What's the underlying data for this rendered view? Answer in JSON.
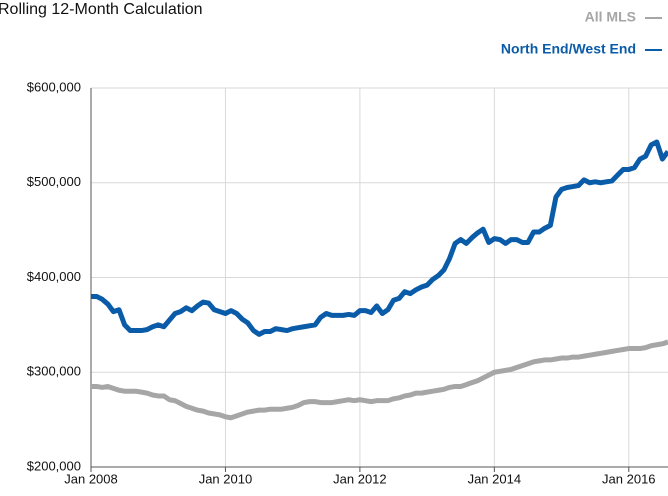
{
  "chart_data": {
    "type": "line",
    "title": "Rolling 12-Month Calculation",
    "categories": [
      "Jan 2008",
      null,
      null,
      null,
      null,
      null,
      null,
      null,
      null,
      null,
      null,
      null,
      null,
      null,
      null,
      null,
      null,
      null,
      null,
      null,
      null,
      null,
      null,
      null,
      "Jan 2010",
      null,
      null,
      null,
      null,
      null,
      null,
      null,
      null,
      null,
      null,
      null,
      null,
      null,
      null,
      null,
      null,
      null,
      null,
      null,
      null,
      null,
      null,
      null,
      "Jan 2012",
      null,
      null,
      null,
      null,
      null,
      null,
      null,
      null,
      null,
      null,
      null,
      null,
      null,
      null,
      null,
      null,
      null,
      null,
      null,
      null,
      null,
      null,
      null,
      "Jan 2014",
      null,
      null,
      null,
      null,
      null,
      null,
      null,
      null,
      null,
      null,
      null,
      null,
      null,
      null,
      null,
      null,
      null,
      null,
      null,
      null,
      null,
      null,
      null,
      "Jan 2016",
      null,
      null,
      null,
      null,
      null,
      null,
      null
    ],
    "series": [
      {
        "name": "All MLS",
        "color": "#a6a6a6",
        "values": [
          285000,
          285000,
          284000,
          285000,
          283000,
          281000,
          280000,
          280000,
          280000,
          279000,
          278000,
          276000,
          275000,
          275000,
          271000,
          270000,
          267000,
          264000,
          262000,
          260000,
          259000,
          257000,
          256000,
          255000,
          253000,
          252000,
          254000,
          256000,
          258000,
          259000,
          260000,
          260000,
          261000,
          261000,
          261000,
          262000,
          263000,
          265000,
          268000,
          269000,
          269000,
          268000,
          268000,
          268000,
          269000,
          270000,
          271000,
          270000,
          271000,
          270000,
          269000,
          270000,
          270000,
          270000,
          272000,
          273000,
          275000,
          276000,
          278000,
          278000,
          279000,
          280000,
          281000,
          282000,
          284000,
          285000,
          285000,
          287000,
          289000,
          291000,
          294000,
          297000,
          300000,
          301000,
          302000,
          303000,
          305000,
          307000,
          309000,
          311000,
          312000,
          313000,
          313000,
          314000,
          315000,
          315000,
          316000,
          316000,
          317000,
          318000,
          319000,
          320000,
          321000,
          322000,
          323000,
          324000,
          325000,
          325000,
          325000,
          326000,
          328000,
          329000,
          330000,
          332000
        ]
      },
      {
        "name": "North End/West End",
        "color": "#0b5ca8",
        "values": [
          380000,
          380000,
          377000,
          372000,
          364000,
          366000,
          350000,
          344000,
          344000,
          344000,
          345000,
          348000,
          350000,
          348000,
          355000,
          362000,
          364000,
          368000,
          365000,
          370000,
          374000,
          373000,
          366000,
          364000,
          362000,
          365000,
          362000,
          356000,
          352000,
          344000,
          340000,
          343000,
          343000,
          346000,
          345000,
          344000,
          346000,
          347000,
          348000,
          349000,
          350000,
          358000,
          362000,
          360000,
          360000,
          360000,
          361000,
          360000,
          365000,
          365000,
          363000,
          370000,
          362000,
          366000,
          376000,
          378000,
          385000,
          383000,
          387000,
          390000,
          392000,
          398000,
          402000,
          408000,
          420000,
          436000,
          440000,
          436000,
          442000,
          447000,
          451000,
          437000,
          441000,
          440000,
          436000,
          440000,
          440000,
          437000,
          437000,
          448000,
          448000,
          452000,
          455000,
          485000,
          493000,
          495000,
          496000,
          497000,
          503000,
          500000,
          501000,
          500000,
          501000,
          502000,
          508000,
          514000,
          514000,
          516000,
          525000,
          528000,
          540000,
          543000,
          525000,
          533000
        ]
      }
    ],
    "ylim": [
      200000,
      600000
    ],
    "yticks": [
      {
        "value": 200000,
        "label": "$200,000"
      },
      {
        "value": 300000,
        "label": "$300,000"
      },
      {
        "value": 400000,
        "label": "$400,000"
      },
      {
        "value": 500000,
        "label": "$500,000"
      },
      {
        "value": 600000,
        "label": "$600,000"
      }
    ],
    "grid": true,
    "legend": "top-right"
  }
}
